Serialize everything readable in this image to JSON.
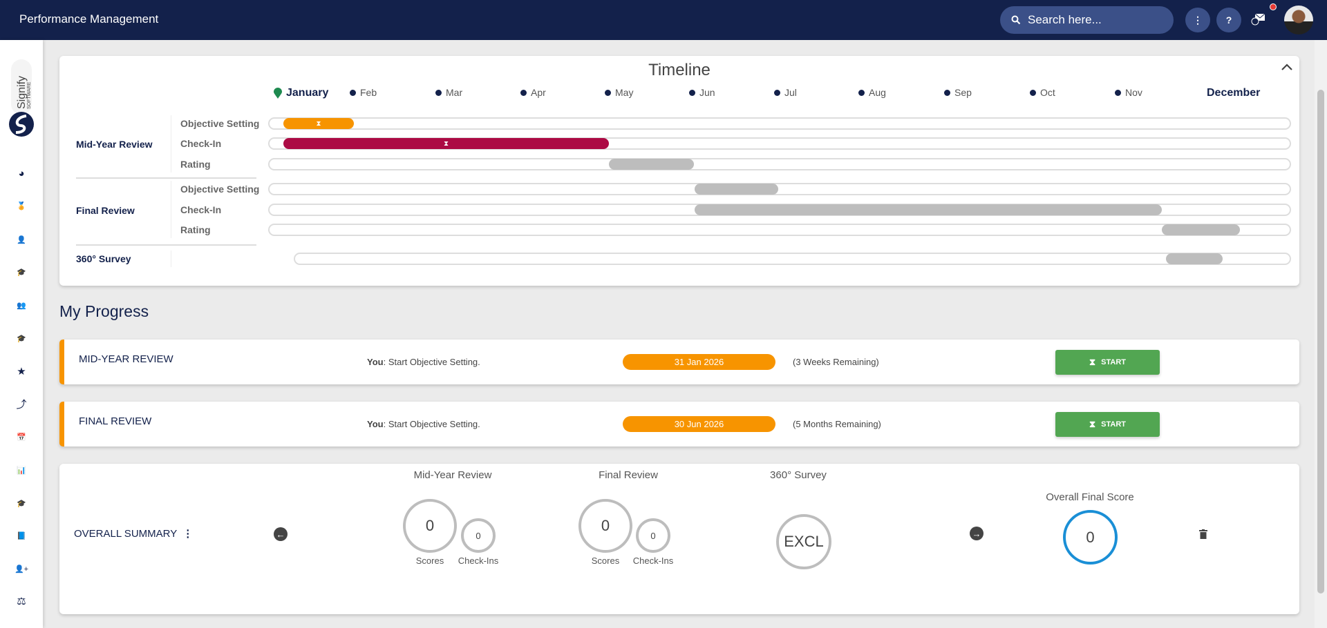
{
  "header": {
    "title": "Performance Management",
    "search_placeholder": "Search here...",
    "more_icon": "⋮",
    "help_icon": "?",
    "notification_color": "#e53935"
  },
  "colors": {
    "navy": "#13214b",
    "orange": "#f79400",
    "crimson": "#ac0a44",
    "gray": "#bdbdbd",
    "green": "#52a652",
    "blue": "#1a8fd6"
  },
  "sidebar": {
    "logo_text": "Signify",
    "logo_sub": "SOFTWARE",
    "items": [
      {
        "icon": "dashboard-icon",
        "glyph": "◕"
      },
      {
        "icon": "medal-icon",
        "glyph": "🏅"
      },
      {
        "icon": "user-icon",
        "glyph": "👤"
      },
      {
        "icon": "graduation-cap-icon",
        "glyph": "🎓"
      },
      {
        "icon": "team-icon",
        "glyph": "👥"
      },
      {
        "icon": "graduation-cap-icon",
        "glyph": "🎓"
      },
      {
        "icon": "star-icon",
        "glyph": "★"
      },
      {
        "icon": "split-arrow-icon",
        "glyph": "⤴"
      },
      {
        "icon": "calendar-check-icon",
        "glyph": "📅"
      },
      {
        "icon": "bar-chart-icon",
        "glyph": "📊"
      },
      {
        "icon": "graduation-cap-icon",
        "glyph": "🎓"
      },
      {
        "icon": "book-icon",
        "glyph": "📘"
      },
      {
        "icon": "user-plus-icon",
        "glyph": "👤+"
      },
      {
        "icon": "scales-icon",
        "glyph": "⚖"
      }
    ]
  },
  "timeline": {
    "title": "Timeline",
    "months": [
      "January",
      "Feb",
      "Mar",
      "Apr",
      "May",
      "Jun",
      "Jul",
      "Aug",
      "Sep",
      "Oct",
      "Nov",
      "December"
    ],
    "current_month": "January",
    "groups": [
      {
        "label": "Mid-Year Review",
        "rows": [
          {
            "label": "Objective Setting",
            "start_month": 1.0,
            "end_month": 1.83,
            "status": "active",
            "color": "#f79400"
          },
          {
            "label": "Check-In",
            "start_month": 1.0,
            "end_month": 4.83,
            "status": "active",
            "color": "#ac0a44"
          },
          {
            "label": "Rating",
            "start_month": 4.83,
            "end_month": 5.83,
            "status": "pending",
            "color": "#bdbdbd"
          }
        ]
      },
      {
        "label": "Final Review",
        "rows": [
          {
            "label": "Objective Setting",
            "start_month": 5.84,
            "end_month": 6.82,
            "status": "pending",
            "color": "#bdbdbd"
          },
          {
            "label": "Check-In",
            "start_month": 5.84,
            "end_month": 11.33,
            "status": "pending",
            "color": "#bdbdbd"
          },
          {
            "label": "Rating",
            "start_month": 11.33,
            "end_month": 12.25,
            "status": "pending",
            "color": "#bdbdbd"
          }
        ]
      },
      {
        "label": "360° Survey",
        "rows": [
          {
            "label": "",
            "start_month": 11.38,
            "end_month": 12.05,
            "status": "pending",
            "color": "#bdbdbd"
          }
        ]
      }
    ]
  },
  "progress": {
    "title": "My Progress",
    "rows": [
      {
        "title": "MID-YEAR REVIEW",
        "who": "You",
        "action": ": Start Objective Setting.",
        "date": "31 Jan 2026",
        "remaining": "(3 Weeks Remaining)",
        "button": "START"
      },
      {
        "title": "FINAL REVIEW",
        "who": "You",
        "action": ": Start Objective Setting.",
        "date": "30 Jun 2026",
        "remaining": "(5 Months Remaining)",
        "button": "START"
      }
    ]
  },
  "summary": {
    "title": "OVERALL SUMMARY",
    "mid_year": {
      "heading": "Mid-Year Review",
      "scores": "0",
      "checkins": "0",
      "scores_label": "Scores",
      "checkins_label": "Check-Ins"
    },
    "final": {
      "heading": "Final Review",
      "scores": "0",
      "checkins": "0",
      "scores_label": "Scores",
      "checkins_label": "Check-Ins"
    },
    "survey": {
      "heading": "360° Survey",
      "value": "EXCL"
    },
    "overall": {
      "heading": "Overall Final Score",
      "value": "0"
    }
  }
}
